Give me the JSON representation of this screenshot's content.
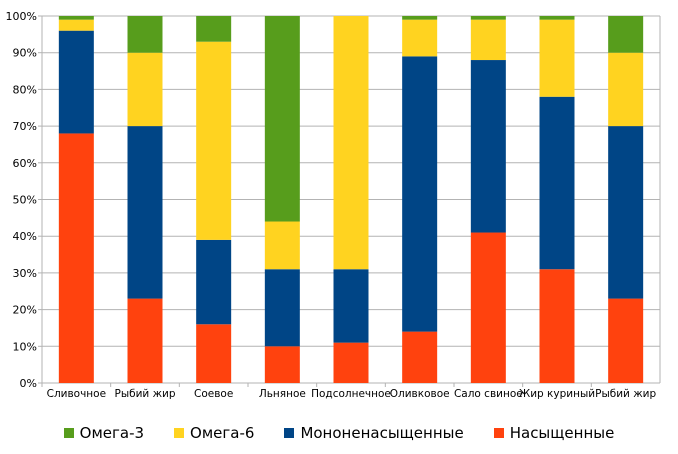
{
  "chart_data": {
    "type": "bar",
    "stacked": "percent",
    "title": "",
    "xlabel": "",
    "ylabel": "",
    "ylim": [
      0,
      100
    ],
    "yticks": [
      "0%",
      "10%",
      "20%",
      "30%",
      "40%",
      "50%",
      "60%",
      "70%",
      "80%",
      "90%",
      "100%"
    ],
    "grid": true,
    "legend_position": "bottom",
    "categories": [
      "Сливочное",
      "Рыбий жир",
      "Соевое",
      "Льняное",
      "Подсолнечное",
      "Оливковое",
      "Сало свиное",
      "Жир куриный",
      "Рыбий жир"
    ],
    "series": [
      {
        "name": "Насыщенные",
        "color": "#ff420e",
        "values": [
          68,
          23,
          16,
          10,
          11,
          14,
          41,
          31,
          23
        ]
      },
      {
        "name": "Мононенасыщенные",
        "color": "#004586",
        "values": [
          28,
          47,
          23,
          21,
          20,
          75,
          47,
          47,
          47
        ]
      },
      {
        "name": "Омега-6",
        "color": "#ffd320",
        "values": [
          3,
          20,
          54,
          13,
          69,
          10,
          11,
          21,
          20
        ]
      },
      {
        "name": "Омега-3",
        "color": "#579d1c",
        "values": [
          1,
          10,
          7,
          56,
          0,
          1,
          1,
          1,
          10
        ]
      }
    ],
    "legend_order": [
      "Омега-3",
      "Омега-6",
      "Мононенасыщенные",
      "Насыщенные"
    ]
  }
}
